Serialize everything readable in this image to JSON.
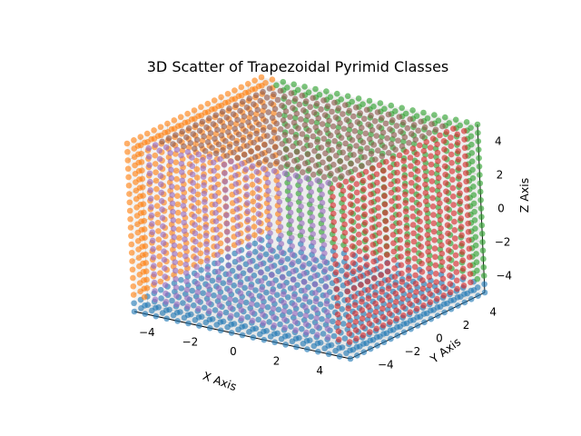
{
  "chart_data": {
    "type": "scatter3d",
    "title": "3D Scatter of Trapezoidal Pyrimid Classes",
    "xlabel": "X Axis",
    "ylabel": "Y Axis",
    "zlabel": "Z Axis",
    "xlim": [
      -5,
      5
    ],
    "ylim": [
      -5,
      5
    ],
    "zlim": [
      -5,
      5
    ],
    "xticks": [
      "−4",
      "−2",
      "0",
      "2",
      "4"
    ],
    "yticks": [
      "−4",
      "−2",
      "0",
      "2",
      "4"
    ],
    "zticks": [
      "−4",
      "−2",
      "0",
      "2",
      "4"
    ],
    "grid": true,
    "legend": "none",
    "grid_range": [
      -5,
      5
    ],
    "grid_points_per_axis": 21,
    "series": [
      {
        "color": "#1f77b4",
        "region": "z < -4 (bottom face)"
      },
      {
        "color": "#ff7f0e",
        "region": "x < -4 (left face)"
      },
      {
        "color": "#2ca02c",
        "region": "y > 4 (back face)"
      },
      {
        "color": "#d62728",
        "region": "x > 4 (right face)"
      },
      {
        "color": "#9467bd",
        "region": "y < -4 (front face)"
      },
      {
        "color": "#8c564b",
        "region": "z > 4 (top face)"
      }
    ]
  }
}
